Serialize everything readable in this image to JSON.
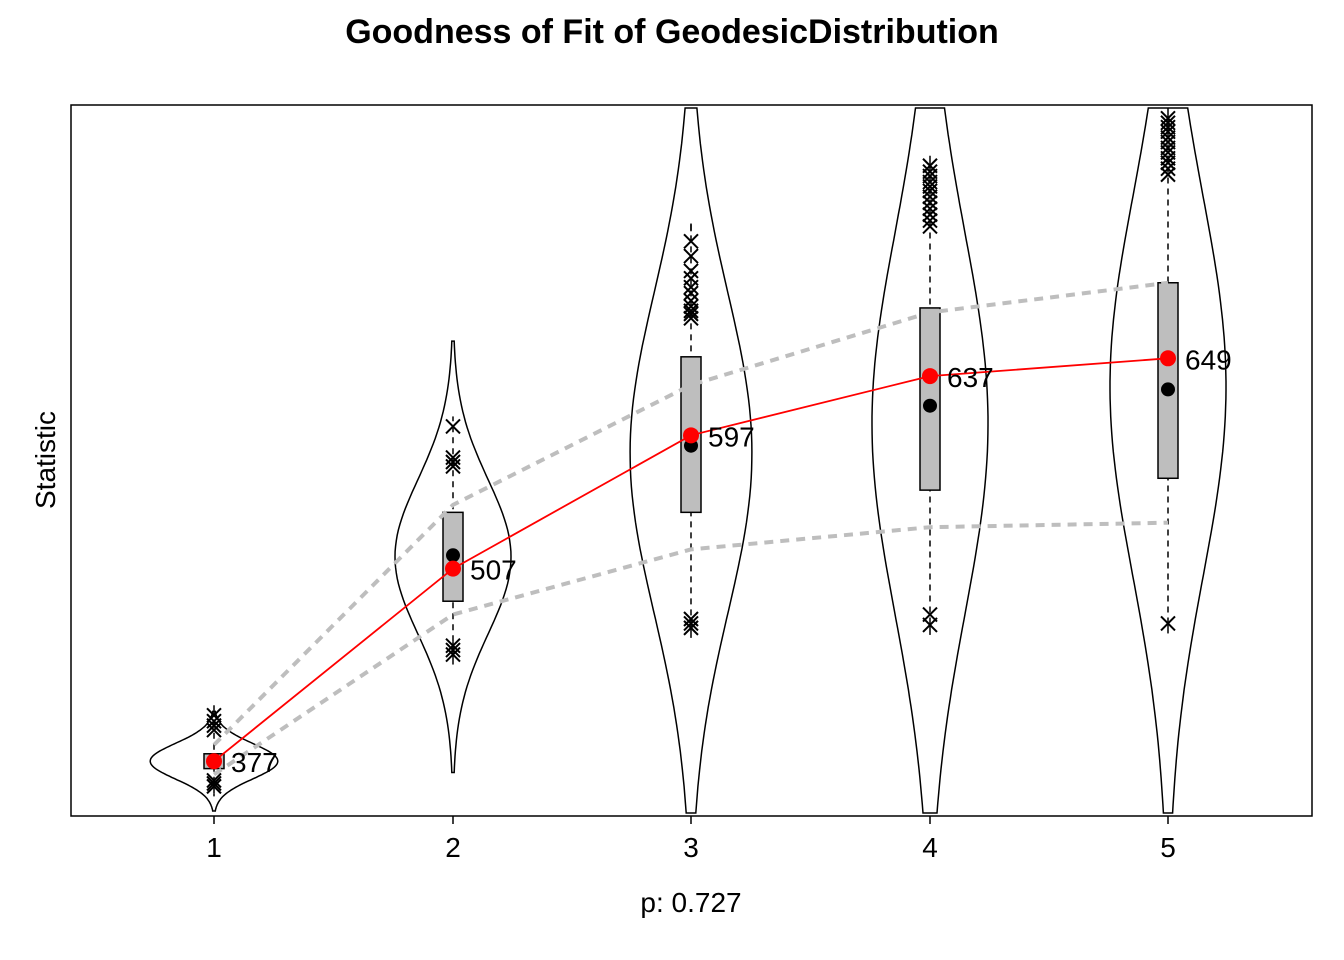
{
  "chart_data": {
    "type": "violin",
    "title": "Goodness of Fit of GeodesicDistribution",
    "xlabel": "p: 0.727",
    "ylabel": "Statistic",
    "categories": [
      "1",
      "2",
      "3",
      "4",
      "5"
    ],
    "ylim": [
      340,
      820
    ],
    "observed": [
      377,
      507,
      597,
      637,
      649
    ],
    "observed_labels": [
      "377",
      "507",
      "597",
      "637",
      "649"
    ],
    "simulated_median": [
      377,
      516,
      590,
      617,
      628
    ],
    "box_q1": [
      372,
      485,
      545,
      560,
      568
    ],
    "box_q3": [
      382,
      545,
      650,
      683,
      700
    ],
    "whisker_low": [
      355,
      458,
      468,
      470,
      470
    ],
    "whisker_high": [
      408,
      608,
      740,
      778,
      798
    ],
    "ci_lower": [
      368,
      476,
      520,
      535,
      538
    ],
    "ci_upper": [
      388,
      550,
      631,
      680,
      700
    ],
    "violin_center": [
      377,
      515,
      585,
      605,
      630
    ],
    "violin_halfwidth": [
      1.1,
      1.0,
      1.05,
      1.0,
      1.0
    ],
    "violin_spread": [
      12,
      52,
      108,
      128,
      128
    ],
    "outliers_low": [
      [
        360,
        362,
        364
      ],
      [
        449,
        452,
        455
      ],
      [
        467,
        470,
        473
      ],
      [
        469,
        476
      ],
      [
        470
      ]
    ],
    "outliers_high": [
      [
        398,
        401,
        404,
        408
      ],
      [
        576,
        579,
        582,
        603
      ],
      [
        676,
        679,
        681,
        684,
        688,
        693,
        697,
        703,
        708,
        718,
        728
      ],
      [
        738,
        742,
        746,
        750,
        754,
        758,
        762,
        765,
        768,
        772,
        775,
        779
      ],
      [
        773,
        777,
        781,
        784,
        788,
        791,
        795,
        798,
        802,
        805,
        808,
        811
      ]
    ],
    "colors": {
      "observed": "#ff0000",
      "box_fill": "#bebebe",
      "ci_line": "#bebebe",
      "violin": "#000000",
      "median": "#000000"
    },
    "grid": false,
    "legend": "none"
  }
}
